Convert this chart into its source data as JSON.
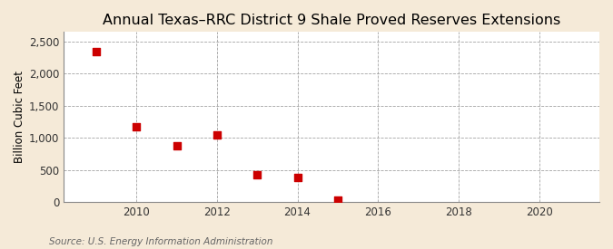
{
  "title": "Annual Texas–RRC District 9 Shale Proved Reserves Extensions",
  "ylabel": "Billion Cubic Feet",
  "source": "Source: U.S. Energy Information Administration",
  "years": [
    2009,
    2010,
    2011,
    2012,
    2013,
    2014,
    2015
  ],
  "values": [
    2350,
    1175,
    875,
    1050,
    425,
    375,
    30
  ],
  "xlim": [
    2008.2,
    2021.5
  ],
  "ylim": [
    0,
    2650
  ],
  "yticks": [
    0,
    500,
    1000,
    1500,
    2000,
    2500
  ],
  "xticks": [
    2010,
    2012,
    2014,
    2016,
    2018,
    2020
  ],
  "marker_color": "#cc0000",
  "marker_size": 5,
  "fig_background_color": "#f5ead8",
  "plot_background_color": "#ffffff",
  "grid_color": "#999999",
  "title_fontsize": 11.5,
  "label_fontsize": 8.5,
  "tick_fontsize": 8.5,
  "source_fontsize": 7.5
}
